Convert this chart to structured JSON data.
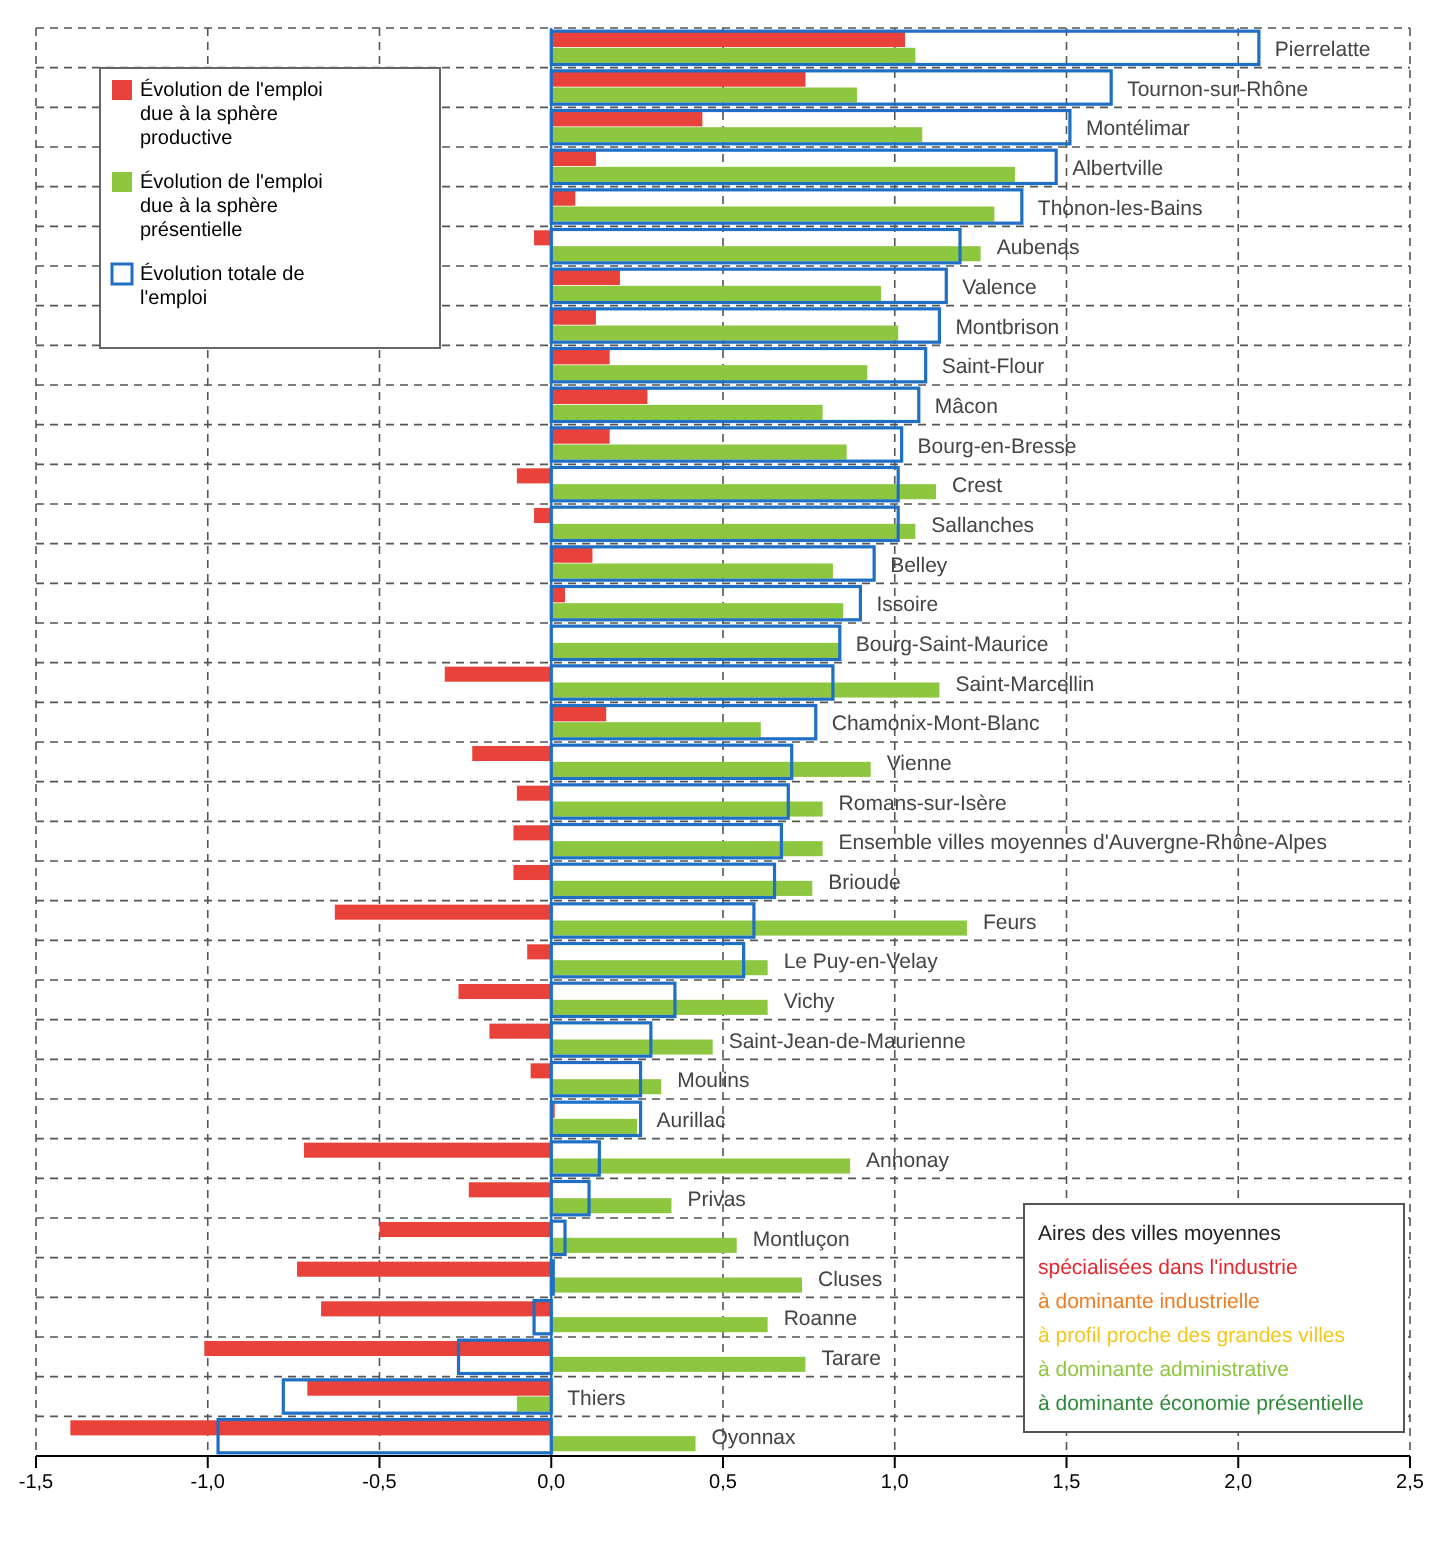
{
  "chart_data": {
    "type": "bar",
    "orientation": "horizontal",
    "grid": true,
    "legend": "top left",
    "categories": [
      "Pierrelatte",
      "Tournon-sur-Rhône",
      "Montélimar",
      "Albertville",
      "Thonon-les-Bains",
      "Aubenas",
      "Valence",
      "Montbrison",
      "Saint-Flour",
      "Mâcon",
      "Bourg-en-Bresse",
      "Crest",
      "Sallanches",
      "Belley",
      "Issoire",
      "Bourg-Saint-Maurice",
      "Saint-Marcellin",
      "Chamonix-Mont-Blanc",
      "Vienne",
      "Romans-sur-Isère",
      "Ensemble villes moyennes d'Auvergne-Rhône-Alpes",
      "Brioude",
      "Feurs",
      "Le Puy-en-Velay",
      "Vichy",
      "Saint-Jean-de-Maurienne",
      "Moulins",
      "Aurillac",
      "Annonay",
      "Privas",
      "Montluçon",
      "Cluses",
      "Roanne",
      "Tarare",
      "Thiers",
      "Oyonnax"
    ],
    "series": [
      {
        "name": "Évolution de l'emploi due à la sphère productive",
        "color": "#e8423a",
        "values": [
          1.03,
          0.74,
          0.44,
          0.13,
          0.07,
          -0.05,
          0.2,
          0.13,
          0.17,
          0.28,
          0.17,
          -0.1,
          -0.05,
          0.12,
          0.04,
          0,
          -0.31,
          0.16,
          -0.23,
          -0.1,
          -0.11,
          -0.11,
          -0.63,
          -0.07,
          -0.27,
          -0.18,
          -0.06,
          0.01,
          -0.72,
          -0.24,
          -0.5,
          -0.74,
          -0.67,
          -1.01,
          -0.71,
          -1.4
        ]
      },
      {
        "name": "Évolution de l'emploi due à la sphère présentielle",
        "color": "#8dc63f",
        "values": [
          1.06,
          0.89,
          1.08,
          1.35,
          1.29,
          1.25,
          0.96,
          1.01,
          0.92,
          0.79,
          0.86,
          1.12,
          1.06,
          0.82,
          0.85,
          0.84,
          1.13,
          0.61,
          0.93,
          0.79,
          0.79,
          0.76,
          1.21,
          0.63,
          0.63,
          0.47,
          0.32,
          0.25,
          0.87,
          0.35,
          0.54,
          0.73,
          0.63,
          0.74,
          -0.1,
          0.42
        ]
      },
      {
        "name": "Évolution totale de l'emploi",
        "color": "#1f6fc4",
        "line_style": "solid",
        "values": [
          2.06,
          1.63,
          1.51,
          1.47,
          1.37,
          1.19,
          1.15,
          1.13,
          1.09,
          1.07,
          1.02,
          1.01,
          1.01,
          0.94,
          0.9,
          0.84,
          0.82,
          0.77,
          0.7,
          0.69,
          0.67,
          0.65,
          0.59,
          0.56,
          0.36,
          0.29,
          0.26,
          0.26,
          0.14,
          0.11,
          0.04,
          0,
          -0.05,
          -0.27,
          -0.78,
          -0.97
        ]
      }
    ],
    "ref_lines": [
      {
        "axis": "x",
        "value": 0,
        "color": "#1f6fc4"
      }
    ],
    "xlim": [
      -1.5,
      2.5
    ],
    "xticks": [
      {
        "value": -1.5,
        "label": "-1,5"
      },
      {
        "value": -1,
        "label": "-1,0"
      },
      {
        "value": -0.5,
        "label": "-0,5"
      },
      {
        "value": 0,
        "label": "0,0"
      },
      {
        "value": 0.5,
        "label": "0,5"
      },
      {
        "value": 1,
        "label": "1,0"
      },
      {
        "value": 1.5,
        "label": "1,5"
      },
      {
        "value": 2,
        "label": "2,0"
      },
      {
        "value": 2.5,
        "label": "2,5"
      }
    ],
    "annotations": [
      "Aires des villes moyennes",
      "spécialisées dans l'industrie",
      "à dominante industrielle",
      "à profil proche des grandes villes",
      "à dominante administrative",
      "à dominante économie présentielle"
    ]
  }
}
